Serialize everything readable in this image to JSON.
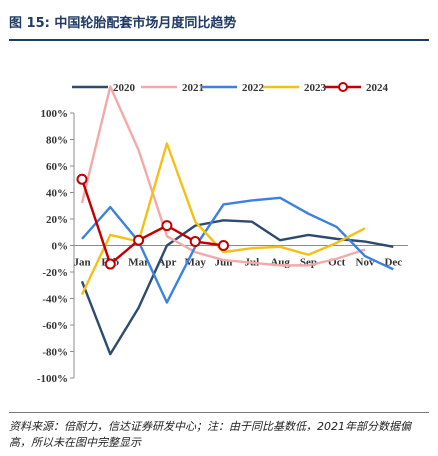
{
  "header": {
    "title": "图 15:  中国轮胎配套市场月度同比趋势"
  },
  "footer": {
    "source": "资料来源：倍耐力，信达证券研发中心；注：由于同比基数低，2021年部分数据偏高，所以未在图中完整显示"
  },
  "chart_data": {
    "type": "line",
    "title": "",
    "xlabel": "",
    "ylabel": "",
    "categories": [
      "Jan",
      "Feb",
      "Mar",
      "Apr",
      "May",
      "Jun",
      "Jul",
      "Aug",
      "Sep",
      "Oct",
      "Nov",
      "Dec"
    ],
    "y_tick_labels": [
      "100%",
      "80%",
      "60%",
      "40%",
      "20%",
      "0%",
      "-20%",
      "-40%",
      "-60%",
      "-80%",
      "-100%"
    ],
    "ylim": [
      -100,
      100
    ],
    "y_unit": "%",
    "grid": false,
    "legend_position": "top",
    "series": [
      {
        "name": "2020",
        "color": "#2e4a6e",
        "marker": "none",
        "values": [
          -27,
          -82,
          -47,
          0,
          15,
          19,
          18,
          4,
          8,
          5,
          3,
          -1
        ]
      },
      {
        "name": "2021",
        "color": "#f4a9a9",
        "marker": "none",
        "values": [
          32,
          120,
          72,
          7,
          -5,
          -11,
          -13,
          -15,
          -15,
          -10,
          -3,
          null
        ]
      },
      {
        "name": "2022",
        "color": "#3b82e0",
        "marker": "none",
        "values": [
          5,
          29,
          3,
          -43,
          -1,
          31,
          34,
          36,
          24,
          14,
          -8,
          -18
        ]
      },
      {
        "name": "2023",
        "color": "#f5c016",
        "marker": "none",
        "values": [
          -37,
          8,
          3,
          77,
          18,
          -5,
          -2,
          -1,
          -7,
          2,
          13,
          null
        ]
      },
      {
        "name": "2024",
        "color": "#c00000",
        "marker": "circle",
        "values": [
          50,
          -14,
          4,
          15,
          3,
          0,
          null,
          null,
          null,
          null,
          null,
          null
        ]
      }
    ]
  }
}
